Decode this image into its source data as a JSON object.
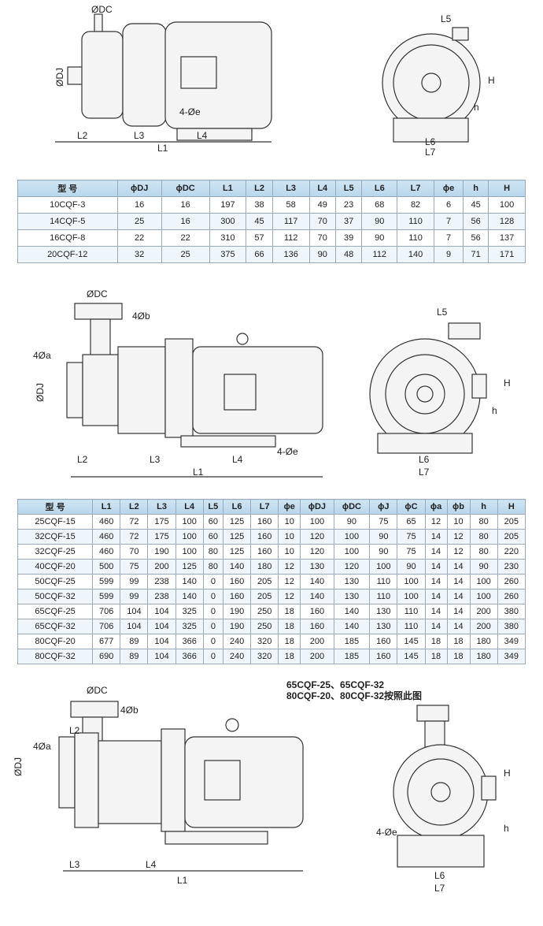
{
  "drawing1": {
    "labels": {
      "dc": "ØDC",
      "dj": "ØDJ",
      "l2": "L2",
      "l3": "L3",
      "l4": "L4",
      "l1": "L1",
      "e": "4-Øe",
      "l5": "L5",
      "H": "H",
      "h": "h",
      "l6": "L6",
      "l7": "L7"
    }
  },
  "table1": {
    "headers": [
      "型 号",
      "ϕDJ",
      "ϕDC",
      "L1",
      "L2",
      "L3",
      "L4",
      "L5",
      "L6",
      "L7",
      "ϕe",
      "h",
      "H"
    ],
    "rows": [
      [
        "10CQF-3",
        "16",
        "16",
        "197",
        "38",
        "58",
        "49",
        "23",
        "68",
        "82",
        "6",
        "45",
        "100"
      ],
      [
        "14CQF-5",
        "25",
        "16",
        "300",
        "45",
        "117",
        "70",
        "37",
        "90",
        "110",
        "7",
        "56",
        "128"
      ],
      [
        "16CQF-8",
        "22",
        "22",
        "310",
        "57",
        "112",
        "70",
        "39",
        "90",
        "110",
        "7",
        "56",
        "137"
      ],
      [
        "20CQF-12",
        "32",
        "25",
        "375",
        "66",
        "136",
        "90",
        "48",
        "112",
        "140",
        "9",
        "71",
        "171"
      ]
    ]
  },
  "drawing2": {
    "labels": {
      "dc": "ØDC",
      "b": "4Øb",
      "a": "4Øa",
      "dj": "ØDJ",
      "l2": "L2",
      "l3": "L3",
      "l4": "L4",
      "l1": "L1",
      "e": "4-Øe",
      "l5": "L5",
      "H": "H",
      "h": "h",
      "l6": "L6",
      "l7": "L7"
    }
  },
  "table2": {
    "headers": [
      "型 号",
      "L1",
      "L2",
      "L3",
      "L4",
      "L5",
      "L6",
      "L7",
      "ϕe",
      "ϕDJ",
      "ϕDC",
      "ϕJ",
      "ϕC",
      "ϕa",
      "ϕb",
      "h",
      "H"
    ],
    "rows": [
      [
        "25CQF-15",
        "460",
        "72",
        "175",
        "100",
        "60",
        "125",
        "160",
        "10",
        "100",
        "90",
        "75",
        "65",
        "12",
        "10",
        "80",
        "205"
      ],
      [
        "32CQF-15",
        "460",
        "72",
        "175",
        "100",
        "60",
        "125",
        "160",
        "10",
        "120",
        "100",
        "90",
        "75",
        "14",
        "12",
        "80",
        "205"
      ],
      [
        "32CQF-25",
        "460",
        "70",
        "190",
        "100",
        "80",
        "125",
        "160",
        "10",
        "120",
        "100",
        "90",
        "75",
        "14",
        "12",
        "80",
        "220"
      ],
      [
        "40CQF-20",
        "500",
        "75",
        "200",
        "125",
        "80",
        "140",
        "180",
        "12",
        "130",
        "120",
        "100",
        "90",
        "14",
        "14",
        "90",
        "230"
      ],
      [
        "50CQF-25",
        "599",
        "99",
        "238",
        "140",
        "0",
        "160",
        "205",
        "12",
        "140",
        "130",
        "110",
        "100",
        "14",
        "14",
        "100",
        "260"
      ],
      [
        "50CQF-32",
        "599",
        "99",
        "238",
        "140",
        "0",
        "160",
        "205",
        "12",
        "140",
        "130",
        "110",
        "100",
        "14",
        "14",
        "100",
        "260"
      ],
      [
        "65CQF-25",
        "706",
        "104",
        "104",
        "325",
        "0",
        "190",
        "250",
        "18",
        "160",
        "140",
        "130",
        "110",
        "14",
        "14",
        "200",
        "380"
      ],
      [
        "65CQF-32",
        "706",
        "104",
        "104",
        "325",
        "0",
        "190",
        "250",
        "18",
        "160",
        "140",
        "130",
        "110",
        "14",
        "14",
        "200",
        "380"
      ],
      [
        "80CQF-20",
        "677",
        "89",
        "104",
        "366",
        "0",
        "240",
        "320",
        "18",
        "200",
        "185",
        "160",
        "145",
        "18",
        "18",
        "180",
        "349"
      ],
      [
        "80CQF-32",
        "690",
        "89",
        "104",
        "366",
        "0",
        "240",
        "320",
        "18",
        "200",
        "185",
        "160",
        "145",
        "18",
        "18",
        "180",
        "349"
      ]
    ]
  },
  "drawing3": {
    "note_line1": "65CQF-25、65CQF-32",
    "note_line2": "80CQF-20、80CQF-32按照此图",
    "labels": {
      "dc": "ØDC",
      "b": "4Øb",
      "a": "4Øa",
      "l2": "L2",
      "dj": "ØDJ",
      "l3": "L3",
      "l4": "L4",
      "l1": "L1",
      "e": "4-Øe",
      "H": "H",
      "h": "h",
      "l6": "L6",
      "l7": "L7"
    }
  }
}
